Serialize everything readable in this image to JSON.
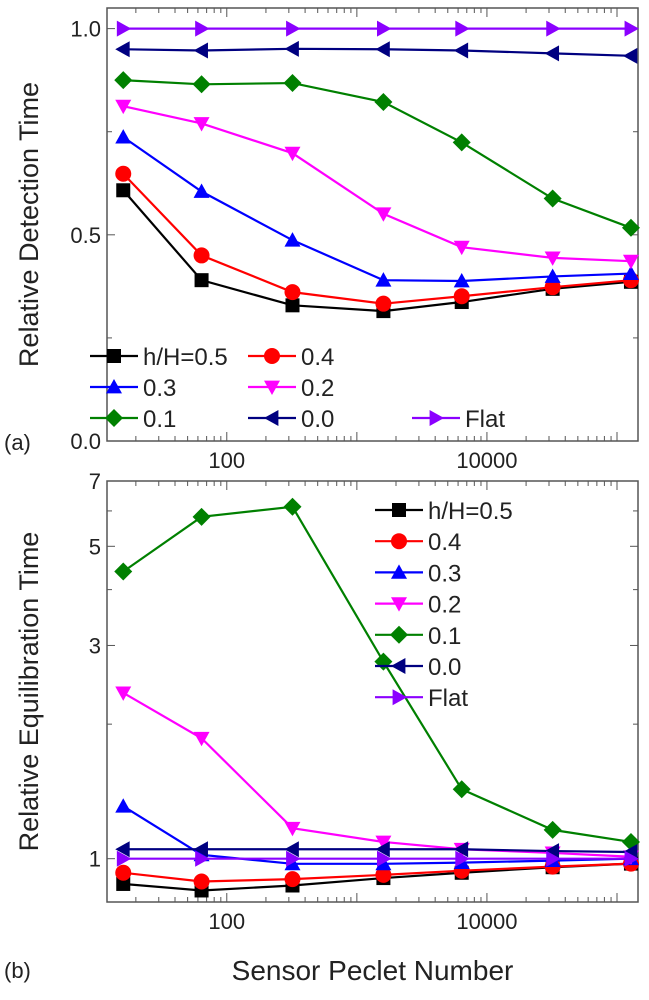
{
  "chart_data": [
    {
      "type": "line",
      "panel_label": "(a)",
      "ylabel": "Relative Detection Time",
      "xlabel": "",
      "xscale": "log",
      "xlim": [
        12,
        145000
      ],
      "ylim": [
        0,
        1.05
      ],
      "yticks": [
        "0.0",
        "0.5",
        "1.0"
      ],
      "ytick_values": [
        0,
        0.5,
        1.0
      ],
      "xticks": [
        "100",
        "10000"
      ],
      "xtick_values": [
        100,
        10000
      ],
      "legend_placement": "bottom",
      "x": [
        16,
        64,
        320,
        1600,
        6400,
        32000,
        128000
      ],
      "series": [
        {
          "name": "h/H=0.5",
          "color": "#000000",
          "marker": "square",
          "values": [
            0.608,
            0.39,
            0.329,
            0.315,
            0.337,
            0.369,
            0.386
          ]
        },
        {
          "name": "0.4",
          "color": "#ff0000",
          "marker": "circle",
          "values": [
            0.648,
            0.45,
            0.361,
            0.333,
            0.351,
            0.373,
            0.39
          ]
        },
        {
          "name": "0.3",
          "color": "#0000ff",
          "marker": "triangle-up",
          "values": [
            0.737,
            0.605,
            0.487,
            0.39,
            0.388,
            0.399,
            0.406
          ]
        },
        {
          "name": "0.2",
          "color": "#ff00ff",
          "marker": "triangle-down",
          "values": [
            0.812,
            0.77,
            0.698,
            0.551,
            0.47,
            0.444,
            0.436
          ]
        },
        {
          "name": "0.1",
          "color": "#008000",
          "marker": "diamond",
          "values": [
            0.875,
            0.865,
            0.868,
            0.822,
            0.724,
            0.588,
            0.517
          ]
        },
        {
          "name": "0.0",
          "color": "#000080",
          "marker": "triangle-left",
          "values": [
            0.95,
            0.947,
            0.951,
            0.95,
            0.947,
            0.94,
            0.934
          ]
        },
        {
          "name": "Flat",
          "color": "#8b00ff",
          "marker": "triangle-right",
          "values": [
            1,
            1,
            1,
            1,
            1,
            1,
            1
          ]
        }
      ]
    },
    {
      "type": "line",
      "panel_label": "(b)",
      "ylabel": "Relative Equilibration Time",
      "xlabel": "Sensor Peclet Number",
      "xscale": "log",
      "yscale": "log",
      "xlim": [
        12,
        145000
      ],
      "ylim": [
        0.8,
        7
      ],
      "yticks": [
        "1",
        "3",
        "5",
        "7"
      ],
      "ytick_values": [
        1,
        3,
        5,
        7
      ],
      "xticks": [
        "100",
        "10000"
      ],
      "xtick_values": [
        100,
        10000
      ],
      "legend_placement": "top-right",
      "x": [
        16,
        64,
        320,
        1600,
        6400,
        32000,
        128000
      ],
      "series": [
        {
          "name": "h/H=0.5",
          "color": "#000000",
          "marker": "square",
          "values": [
            0.878,
            0.849,
            0.871,
            0.905,
            0.93,
            0.957,
            0.975
          ]
        },
        {
          "name": "0.4",
          "color": "#ff0000",
          "marker": "circle",
          "values": [
            0.93,
            0.889,
            0.9,
            0.92,
            0.94,
            0.96,
            0.975
          ]
        },
        {
          "name": "0.3",
          "color": "#0000ff",
          "marker": "triangle-up",
          "values": [
            1.31,
            1.02,
            0.974,
            0.974,
            0.98,
            0.99,
            1.0
          ]
        },
        {
          "name": "0.2",
          "color": "#ff00ff",
          "marker": "triangle-down",
          "values": [
            2.35,
            1.86,
            1.17,
            1.09,
            1.05,
            1.03,
            1.01
          ]
        },
        {
          "name": "0.1",
          "color": "#008000",
          "marker": "diamond",
          "values": [
            4.39,
            5.82,
            6.13,
            2.76,
            1.43,
            1.16,
            1.09
          ]
        },
        {
          "name": "0.0",
          "color": "#000080",
          "marker": "triangle-left",
          "values": [
            1.05,
            1.05,
            1.05,
            1.05,
            1.05,
            1.04,
            1.035
          ]
        },
        {
          "name": "Flat",
          "color": "#8b00ff",
          "marker": "triangle-right",
          "values": [
            1,
            1,
            1,
            1,
            1,
            1,
            1
          ]
        }
      ]
    }
  ]
}
